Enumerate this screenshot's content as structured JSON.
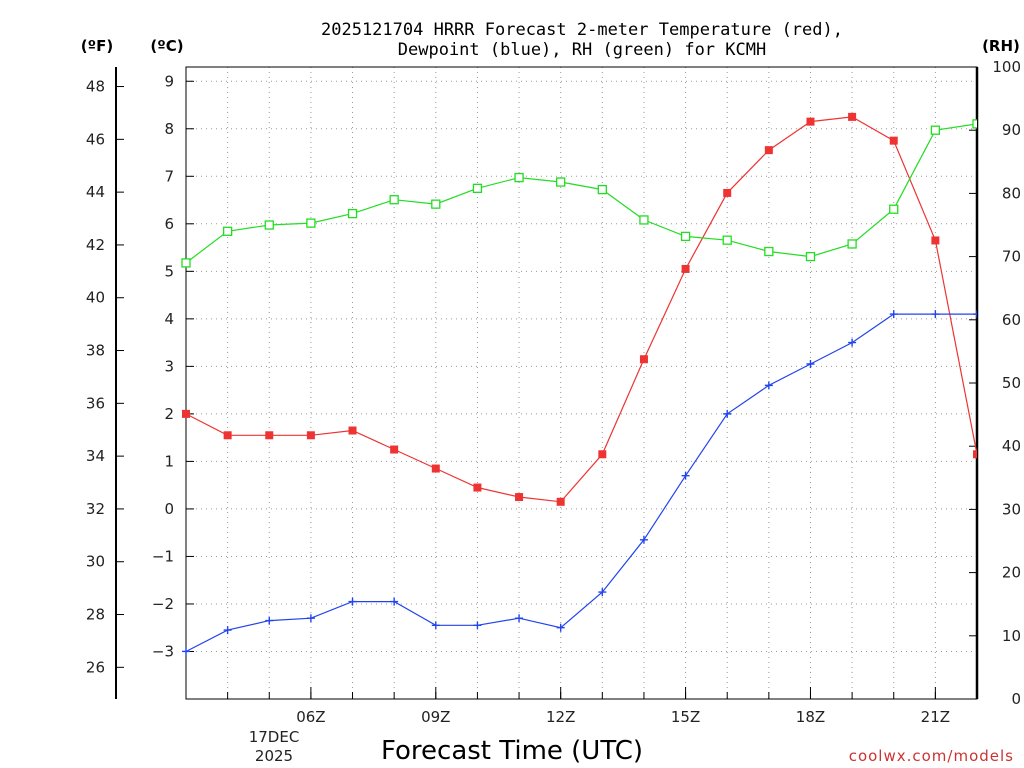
{
  "chart_data": {
    "type": "line",
    "title_line1": "2025121704 HRRR Forecast 2-meter Temperature (red),",
    "title_line2": "Dewpoint (blue), RH (green) for KCMH",
    "xlabel": "Forecast Time (UTC)",
    "date_lines": [
      "17DEC",
      "2025"
    ],
    "credit": "coolwx.com/models",
    "x_hours": [
      3,
      4,
      5,
      6,
      7,
      8,
      9,
      10,
      11,
      12,
      13,
      14,
      15,
      16,
      17,
      18,
      19,
      20,
      21,
      22
    ],
    "xlim": [
      3,
      22
    ],
    "x_ticks": [
      {
        "hour": 6,
        "label": "06Z"
      },
      {
        "hour": 9,
        "label": "09Z"
      },
      {
        "hour": 12,
        "label": "12Z"
      },
      {
        "hour": 15,
        "label": "15Z"
      },
      {
        "hour": 18,
        "label": "18Z"
      },
      {
        "hour": 21,
        "label": "21Z"
      }
    ],
    "axes": {
      "celsius": {
        "unit_label": "(ºC)",
        "range": [
          -4.0,
          9.3
        ],
        "ticks": [
          -3,
          -2,
          -1,
          0,
          1,
          2,
          3,
          4,
          5,
          6,
          7,
          8,
          9
        ],
        "tick_labels": [
          "−3",
          "−2",
          "−1",
          "0",
          "1",
          "2",
          "3",
          "4",
          "5",
          "6",
          "7",
          "8",
          "9"
        ]
      },
      "fahrenheit": {
        "unit_label": "(ºF)",
        "ticks": [
          26,
          28,
          30,
          32,
          34,
          36,
          38,
          40,
          42,
          44,
          46,
          48
        ],
        "tick_labels": [
          "26",
          "28",
          "30",
          "32",
          "34",
          "36",
          "38",
          "40",
          "42",
          "44",
          "46",
          "48"
        ]
      },
      "rh": {
        "unit_label": "(RH)",
        "range": [
          0,
          100
        ],
        "ticks": [
          0,
          10,
          20,
          30,
          40,
          50,
          60,
          70,
          80,
          90,
          100
        ],
        "tick_labels": [
          "0",
          "10",
          "20",
          "30",
          "40",
          "50",
          "60",
          "70",
          "80",
          "90",
          "100"
        ]
      }
    },
    "series": [
      {
        "name": "Temperature",
        "axis": "celsius",
        "color": "#ee3333",
        "marker": "filled-square",
        "values": [
          2.0,
          1.55,
          1.55,
          1.55,
          1.65,
          1.25,
          0.85,
          0.45,
          0.25,
          0.15,
          1.15,
          3.15,
          5.05,
          6.65,
          7.55,
          8.15,
          8.25,
          7.75,
          5.65,
          1.15
        ]
      },
      {
        "name": "Dewpoint",
        "axis": "celsius",
        "color": "#2244ee",
        "marker": "plus",
        "values": [
          -3.0,
          -2.55,
          -2.35,
          -2.3,
          -1.95,
          -1.95,
          -2.45,
          -2.45,
          -2.3,
          -2.5,
          -1.75,
          -0.65,
          0.7,
          2.0,
          2.6,
          3.05,
          3.5,
          4.1,
          4.1,
          4.1
        ]
      },
      {
        "name": "RH",
        "axis": "rh",
        "color": "#22dd22",
        "marker": "open-square",
        "values": [
          69,
          74,
          75,
          75.3,
          76.8,
          79,
          78.3,
          80.8,
          82.5,
          81.8,
          80.6,
          75.8,
          73.2,
          72.6,
          70.8,
          70,
          72,
          77.5,
          90,
          91
        ]
      }
    ]
  }
}
